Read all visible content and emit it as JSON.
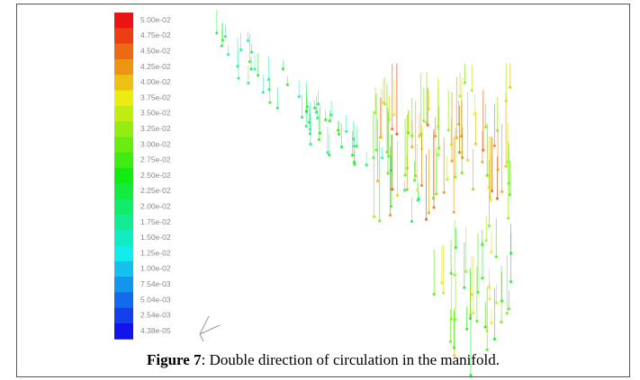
{
  "figure": {
    "colorbar": {
      "labels": [
        "5.00e-02",
        "4.75e-02",
        "4.50e-02",
        "4.25e-02",
        "4.00e-02",
        "3.75e-02",
        "3.50e-02",
        "3.25e-02",
        "3.00e-02",
        "2.75e-02",
        "2.50e-02",
        "2.25e-02",
        "2.00e-02",
        "1.75e-02",
        "1.50e-02",
        "1.25e-02",
        "1.00e-02",
        "7.54e-03",
        "5.04e-03",
        "2.54e-03",
        "4.38e-05"
      ]
    },
    "caption": {
      "label": "Figure 7",
      "text": ": Double direction of circulation in the manifold."
    }
  }
}
